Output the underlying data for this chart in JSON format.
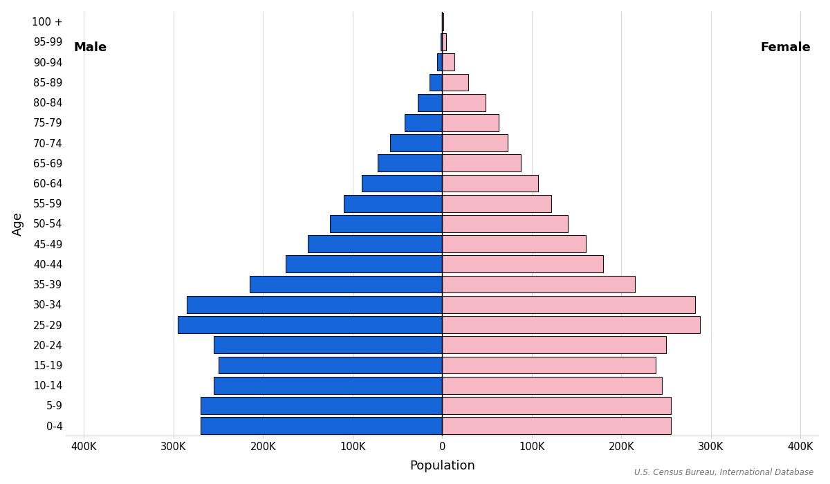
{
  "age_groups": [
    "0-4",
    "5-9",
    "10-14",
    "15-19",
    "20-24",
    "25-29",
    "30-34",
    "35-39",
    "40-44",
    "45-49",
    "50-54",
    "55-59",
    "60-64",
    "65-69",
    "70-74",
    "75-79",
    "80-84",
    "85-89",
    "90-94",
    "95-99",
    "100 +"
  ],
  "male": [
    270000,
    270000,
    255000,
    250000,
    255000,
    295000,
    285000,
    215000,
    175000,
    150000,
    125000,
    110000,
    90000,
    72000,
    58000,
    42000,
    27000,
    14000,
    6000,
    2000,
    600
  ],
  "female": [
    255000,
    255000,
    245000,
    238000,
    250000,
    288000,
    282000,
    215000,
    180000,
    160000,
    140000,
    122000,
    107000,
    88000,
    73000,
    63000,
    48000,
    29000,
    14000,
    4500,
    1200
  ],
  "male_color": "#1565d8",
  "female_color": "#f5b8c4",
  "male_edge": "#111111",
  "female_edge": "#111111",
  "xlabel": "Population",
  "ylabel": "Age",
  "xlim": 420000,
  "x_ticks": [
    -400000,
    -300000,
    -200000,
    -100000,
    0,
    100000,
    200000,
    300000,
    400000
  ],
  "x_tick_labels": [
    "400K",
    "300K",
    "200K",
    "100K",
    "0",
    "100K",
    "200K",
    "300K",
    "400K"
  ],
  "male_label": "Male",
  "female_label": "Female",
  "source_text": "U.S. Census Bureau, International Database",
  "background_color": "#ffffff",
  "grid_color": "#d8d8d8",
  "bar_height": 0.85,
  "edgewidth": 0.8
}
